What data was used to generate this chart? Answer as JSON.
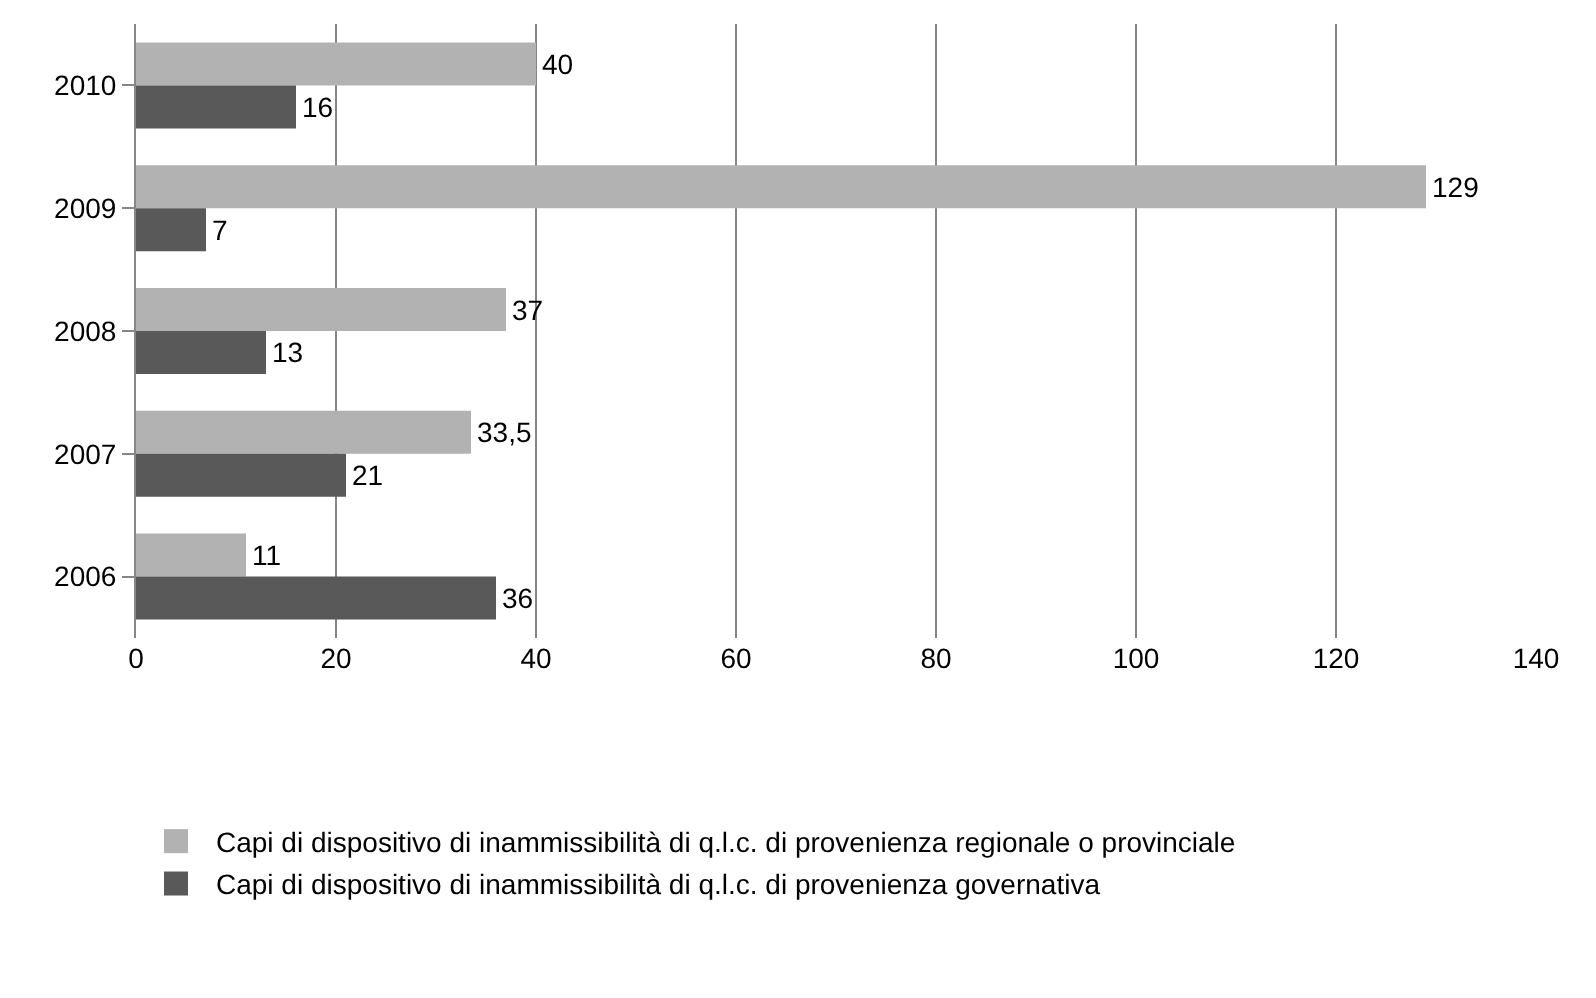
{
  "chart_data": {
    "type": "bar",
    "orientation": "horizontal",
    "categories": [
      "2010",
      "2009",
      "2008",
      "2007",
      "2006"
    ],
    "series": [
      {
        "name": "Capi di dispositivo di inammissibilità di q.l.c. di provenienza regionale o provinciale",
        "color": "#b2b2b2",
        "values": [
          40,
          129,
          37,
          33.5,
          11
        ],
        "value_labels": [
          "40",
          "129",
          "37",
          "33,5",
          "11"
        ]
      },
      {
        "name": "Capi di dispositivo di inammissibilità di q.l.c. di provenienza governativa",
        "color": "#595959",
        "values": [
          16,
          7,
          13,
          21,
          36
        ],
        "value_labels": [
          "16",
          "7",
          "13",
          "21",
          "36"
        ]
      }
    ],
    "xlim": [
      0,
      140
    ],
    "xticks": [
      0,
      20,
      40,
      60,
      80,
      100,
      120,
      140
    ],
    "grid": "x",
    "legend": "bottom"
  }
}
